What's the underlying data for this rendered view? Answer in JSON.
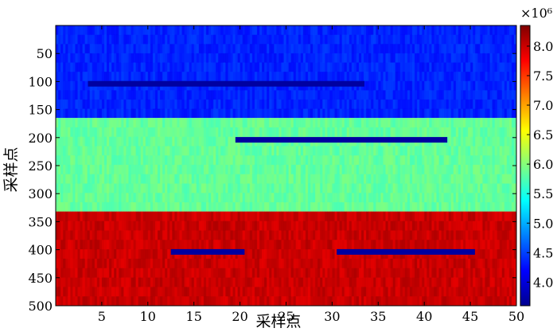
{
  "chart_data": {
    "type": "heatmap",
    "title": "",
    "xlabel": "采样点",
    "ylabel": "采样点",
    "xlim": [
      0,
      50
    ],
    "ylim": [
      0,
      500
    ],
    "y_inverted": true,
    "x_ticks": [
      "5",
      "10",
      "15",
      "20",
      "25",
      "30",
      "35",
      "40",
      "45",
      "50"
    ],
    "y_ticks": [
      "50",
      "100",
      "150",
      "200",
      "250",
      "300",
      "350",
      "400",
      "450",
      "500"
    ],
    "colormap": "jet",
    "colorbar": {
      "multiplier_label": "×10⁶",
      "vmin": 3.6,
      "vmax": 8.35,
      "ticks": [
        "4.0",
        "4.5",
        "5.0",
        "5.5",
        "6.0",
        "6.5",
        "7.0",
        "7.5",
        "8.0"
      ]
    },
    "bands": [
      {
        "y_range": [
          0,
          165
        ],
        "value": 4.35
      },
      {
        "y_range": [
          165,
          332
        ],
        "value": 5.85
      },
      {
        "y_range": [
          332,
          500
        ],
        "value": 8.0
      }
    ],
    "anomaly_lines": [
      {
        "x_range": [
          3.5,
          33.5
        ],
        "y": 104,
        "value": 3.75
      },
      {
        "x_range": [
          19.5,
          42.5
        ],
        "y": 204,
        "value": 3.75
      },
      {
        "x_range": [
          12.5,
          20.5
        ],
        "y": 404,
        "value": 3.75
      },
      {
        "x_range": [
          30.5,
          45.5
        ],
        "y": 404,
        "value": 3.75
      }
    ],
    "noise_amplitude": 0.22
  }
}
